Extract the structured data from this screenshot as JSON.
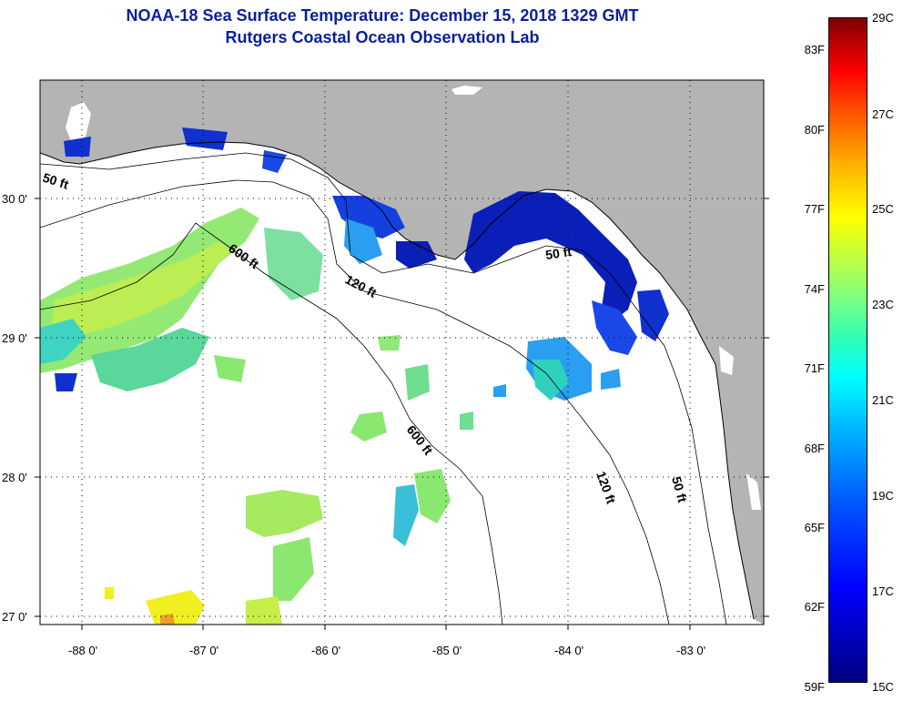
{
  "title": {
    "line1": "NOAA-18 Sea Surface Temperature:  December 15, 2018 1329 GMT",
    "line2": "Rutgers Coastal Ocean Observation Lab"
  },
  "map": {
    "lon_ticks": [
      "-88 0'",
      "-87 0'",
      "-86 0'",
      "-85 0'",
      "-84 0'",
      "-83 0'"
    ],
    "lat_ticks": [
      "30 0'",
      "29 0'",
      "28 0'",
      "27 0'"
    ],
    "contour_labels": [
      "50 ft",
      "600 ft",
      "120 ft",
      "50 ft",
      "600 ft",
      "120 ft",
      "50 ft"
    ],
    "land_color": "#b4b4b4",
    "sea_color": "#ffffff"
  },
  "colorbar": {
    "fahrenheit": [
      "83F",
      "80F",
      "77F",
      "74F",
      "71F",
      "68F",
      "65F",
      "62F",
      "59F"
    ],
    "celsius": [
      "29C",
      "27C",
      "25C",
      "23C",
      "21C",
      "19C",
      "17C",
      "15C"
    ]
  }
}
